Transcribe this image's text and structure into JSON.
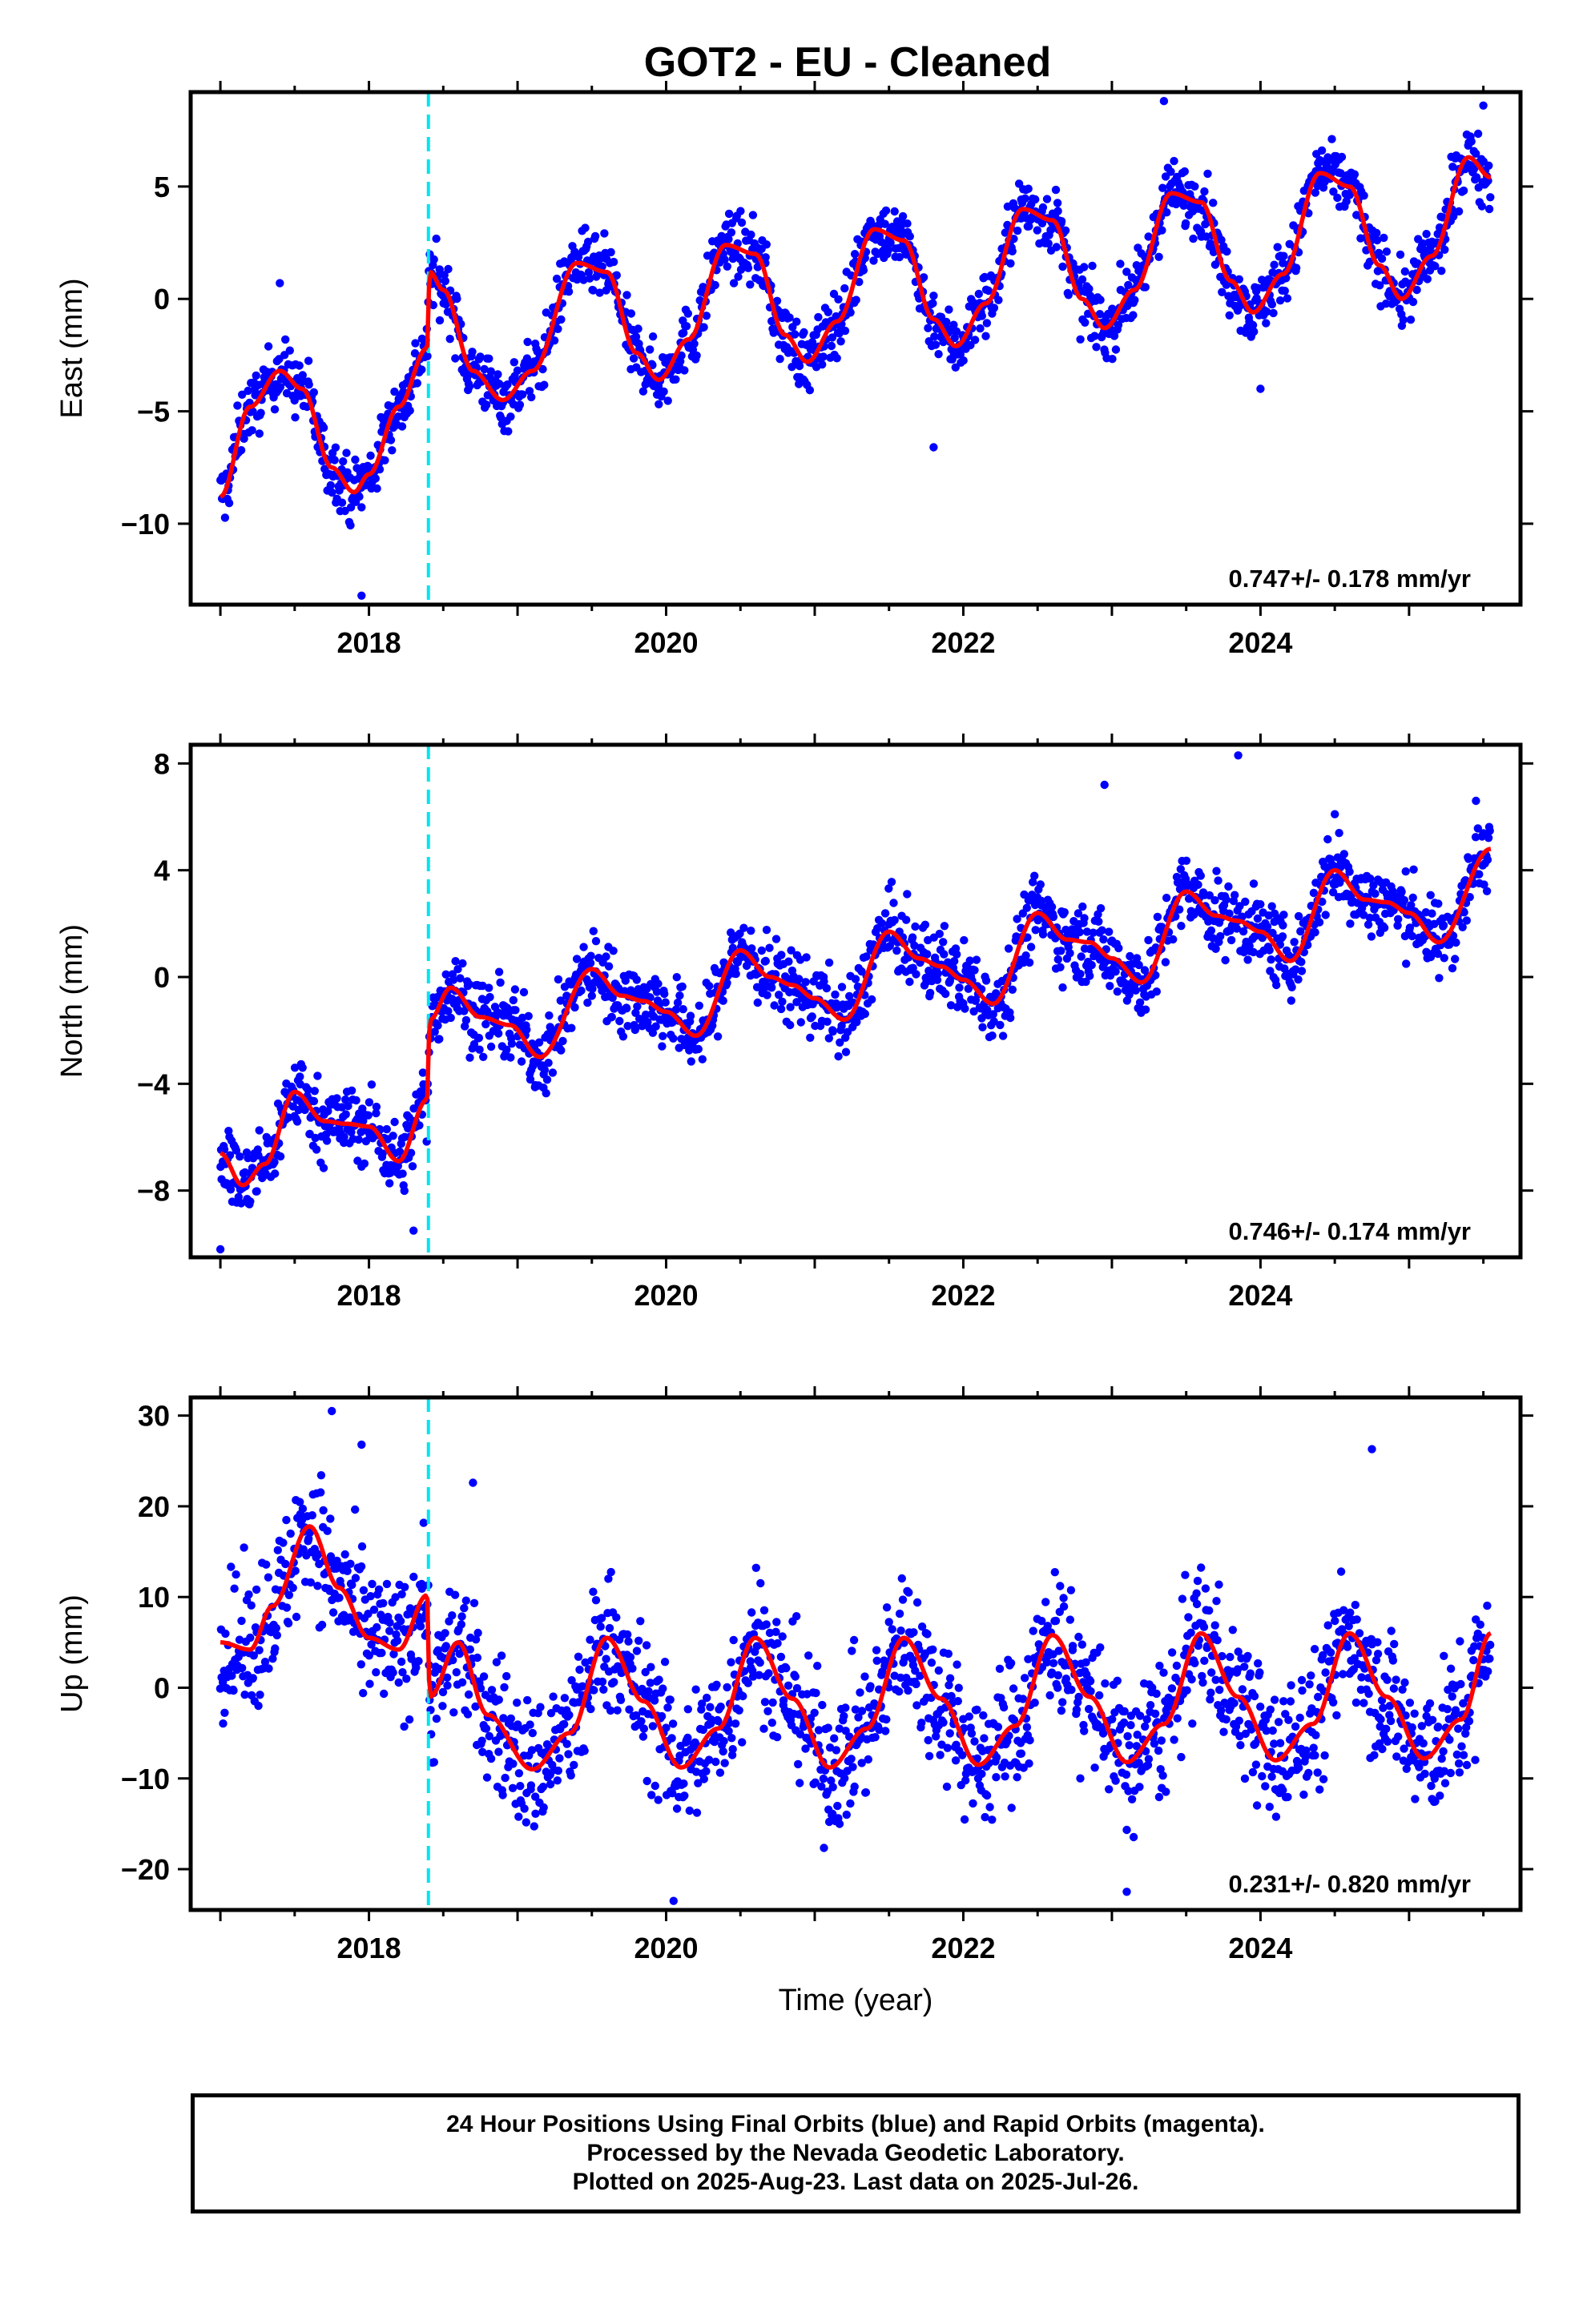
{
  "title": "GOT2  - EU - Cleaned",
  "xlabel": "Time (year)",
  "colors": {
    "points": "#0000ff",
    "fit": "#ff0000",
    "offset": "#00e5ee",
    "frame": "#000000"
  },
  "chart_data": [
    {
      "type": "scatter",
      "component": "east",
      "ylabel": "East (mm)",
      "xlim": [
        2016.8,
        2025.75
      ],
      "ylim": [
        -13.6,
        9.2
      ],
      "x_ticks": [
        2018,
        2020,
        2022,
        2024
      ],
      "y_ticks": [
        -10,
        -5,
        0,
        5
      ],
      "rate_label": "0.747+/- 0.178 mm/yr",
      "offset_epochs": [
        2018.4
      ],
      "fit": {
        "name": "",
        "x": [
          2017.0,
          2017.2,
          2017.4,
          2017.55,
          2017.75,
          2017.9,
          2018.0,
          2018.2,
          2018.39,
          2018.41,
          2018.5,
          2018.7,
          2018.9,
          2019.1,
          2019.4,
          2019.6,
          2019.8,
          2019.95,
          2020.15,
          2020.4,
          2020.6,
          2020.8,
          2020.95,
          2021.15,
          2021.4,
          2021.6,
          2021.8,
          2021.95,
          2022.15,
          2022.4,
          2022.6,
          2022.8,
          2022.95,
          2023.15,
          2023.4,
          2023.6,
          2023.8,
          2023.95,
          2024.15,
          2024.4,
          2024.6,
          2024.8,
          2024.95,
          2025.15,
          2025.4,
          2025.55
        ],
        "y": [
          -8.8,
          -4.8,
          -3.2,
          -4.0,
          -7.5,
          -8.6,
          -7.8,
          -4.8,
          -2.2,
          1.2,
          0.4,
          -3.2,
          -4.5,
          -3.2,
          1.6,
          1.2,
          -2.4,
          -3.6,
          -1.8,
          2.4,
          2.0,
          -1.6,
          -2.8,
          -1.0,
          3.1,
          2.6,
          -0.9,
          -2.1,
          -0.2,
          4.0,
          3.5,
          0.0,
          -1.3,
          0.4,
          4.7,
          4.3,
          0.8,
          -0.6,
          1.1,
          5.6,
          5.0,
          1.5,
          0.0,
          1.9,
          6.3,
          5.4
        ]
      },
      "scatter_amp": 1.0,
      "outliers": [
        {
          "x": 2017.4,
          "y": 0.7
        },
        {
          "x": 2017.95,
          "y": -13.2
        },
        {
          "x": 2021.8,
          "y": -6.6
        },
        {
          "x": 2023.35,
          "y": 8.8
        },
        {
          "x": 2024.0,
          "y": -4.0
        },
        {
          "x": 2025.5,
          "y": 8.6
        }
      ]
    },
    {
      "type": "scatter",
      "component": "north",
      "ylabel": "North (mm)",
      "xlim": [
        2016.8,
        2025.75
      ],
      "ylim": [
        -10.5,
        8.7
      ],
      "x_ticks": [
        2018,
        2020,
        2022,
        2024
      ],
      "y_ticks": [
        -8,
        -4,
        0,
        4,
        8
      ],
      "rate_label": "0.746+/- 0.174 mm/yr",
      "offset_epochs": [
        2018.4
      ],
      "fit": {
        "name": "",
        "x": [
          2017.0,
          2017.15,
          2017.3,
          2017.5,
          2017.7,
          2017.85,
          2018.0,
          2018.2,
          2018.39,
          2018.41,
          2018.55,
          2018.75,
          2018.95,
          2019.15,
          2019.5,
          2019.7,
          2019.85,
          2020.0,
          2020.2,
          2020.5,
          2020.7,
          2020.85,
          2021.0,
          2021.2,
          2021.5,
          2021.7,
          2021.85,
          2022.0,
          2022.2,
          2022.5,
          2022.7,
          2022.85,
          2023.0,
          2023.2,
          2023.5,
          2023.7,
          2023.85,
          2024.0,
          2024.2,
          2024.5,
          2024.7,
          2024.85,
          2025.0,
          2025.2,
          2025.55
        ],
        "y": [
          -6.6,
          -7.8,
          -7.0,
          -4.3,
          -5.4,
          -5.5,
          -5.6,
          -6.9,
          -4.6,
          -1.6,
          -0.4,
          -1.5,
          -1.8,
          -3.0,
          0.3,
          -0.7,
          -0.9,
          -1.3,
          -2.2,
          1.0,
          0.0,
          -0.3,
          -0.8,
          -1.6,
          1.7,
          0.7,
          0.4,
          -0.1,
          -1.0,
          2.4,
          1.4,
          1.3,
          0.7,
          -0.2,
          3.2,
          2.3,
          2.1,
          1.7,
          0.6,
          4.0,
          2.9,
          2.8,
          2.4,
          1.3,
          4.8
        ]
      },
      "scatter_amp": 1.0,
      "outliers": [
        {
          "x": 2017.0,
          "y": -10.2
        },
        {
          "x": 2018.3,
          "y": -9.5
        },
        {
          "x": 2022.95,
          "y": 7.2
        },
        {
          "x": 2023.85,
          "y": 8.3
        },
        {
          "x": 2024.5,
          "y": 6.1
        },
        {
          "x": 2025.45,
          "y": 6.6
        }
      ]
    },
    {
      "type": "scatter",
      "component": "up",
      "ylabel": "Up (mm)",
      "xlim": [
        2016.8,
        2025.75
      ],
      "ylim": [
        -24.5,
        32
      ],
      "x_ticks": [
        2018,
        2020,
        2022,
        2024
      ],
      "y_ticks": [
        -20,
        -10,
        0,
        10,
        20,
        30
      ],
      "rate_label": "0.231+/- 0.820 mm/yr",
      "offset_epochs": [
        2018.4
      ],
      "fit": {
        "name": "",
        "x": [
          2017.0,
          2017.2,
          2017.35,
          2017.6,
          2017.8,
          2018.0,
          2018.2,
          2018.39,
          2018.41,
          2018.6,
          2018.8,
          2019.1,
          2019.35,
          2019.6,
          2019.85,
          2020.1,
          2020.35,
          2020.6,
          2020.85,
          2021.1,
          2021.35,
          2021.6,
          2021.85,
          2022.1,
          2022.35,
          2022.6,
          2022.85,
          2023.1,
          2023.35,
          2023.6,
          2023.85,
          2024.1,
          2024.35,
          2024.6,
          2024.85,
          2025.1,
          2025.35,
          2025.55
        ],
        "y": [
          5.0,
          4.2,
          9.0,
          17.8,
          11.0,
          5.5,
          4.2,
          10.2,
          -1.0,
          5.0,
          -3.0,
          -9.0,
          -5.0,
          5.5,
          -1.5,
          -8.8,
          -4.5,
          5.5,
          -1.2,
          -8.8,
          -4.5,
          5.5,
          -1.2,
          -8.5,
          -4.2,
          5.8,
          -1.0,
          -8.2,
          -4.0,
          6.0,
          -1.0,
          -8.0,
          -4.0,
          6.0,
          -1.0,
          -7.8,
          -3.5,
          6.0
        ]
      },
      "scatter_amp": 5.5,
      "outliers": [
        {
          "x": 2017.75,
          "y": 30.5
        },
        {
          "x": 2017.95,
          "y": 26.8
        },
        {
          "x": 2018.7,
          "y": 22.6
        },
        {
          "x": 2020.05,
          "y": -23.5
        },
        {
          "x": 2024.75,
          "y": 26.3
        },
        {
          "x": 2023.1,
          "y": -22.5
        }
      ]
    }
  ],
  "footer": {
    "line1": "24 Hour Positions Using Final Orbits (blue) and Rapid Orbits (magenta).",
    "line2": "Processed by the Nevada Geodetic Laboratory.",
    "line3": "Plotted on 2025-Aug-23. Last data on 2025-Jul-26."
  }
}
